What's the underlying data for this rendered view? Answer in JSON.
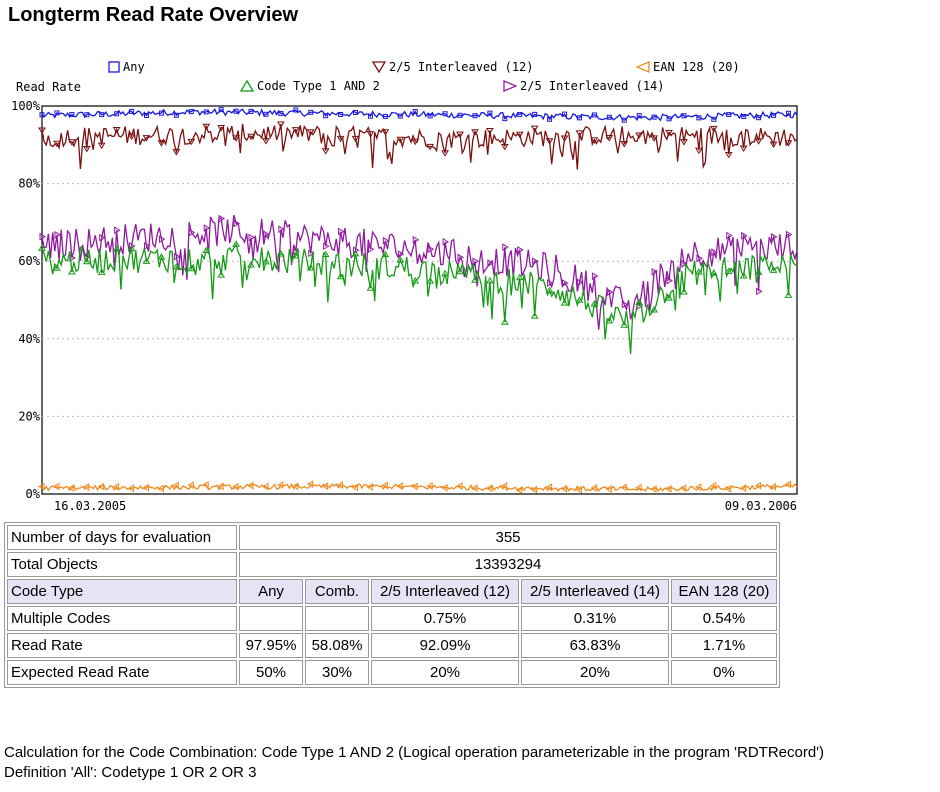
{
  "title": "Longterm Read Rate Overview",
  "chart_data": {
    "type": "line",
    "ylabel": "Read Rate",
    "ylim": [
      0,
      100
    ],
    "yticks": [
      "0%",
      "20%",
      "40%",
      "60%",
      "80%",
      "100%"
    ],
    "x_start_label": "16.03.2005",
    "x_end_label": "09.03.2006",
    "grid": true,
    "legend": [
      {
        "label": "Any",
        "marker": "square",
        "color": "#1a1adb"
      },
      {
        "label": "Code Type 1 AND 2",
        "marker": "triangle-up",
        "color": "#159a15"
      },
      {
        "label": "2/5 Interleaved (12)",
        "marker": "triangle-down",
        "color": "#7a1010"
      },
      {
        "label": "2/5 Interleaved (14)",
        "marker": "triangle-right",
        "color": "#8e1a9e"
      },
      {
        "label": "EAN 128 (20)",
        "marker": "triangle-left",
        "color": "#f08a1e"
      }
    ],
    "series": [
      {
        "name": "Any",
        "color": "#1a1adb",
        "profile": [
          [
            0,
            97.5
          ],
          [
            0.2,
            98.5
          ],
          [
            0.5,
            97.8
          ],
          [
            0.8,
            97
          ],
          [
            1,
            97.8
          ]
        ],
        "spread": 0.8,
        "dips": 0
      },
      {
        "name": "2/5 Interleaved (12)",
        "color": "#7a1010",
        "profile": [
          [
            0,
            92
          ],
          [
            0.3,
            93
          ],
          [
            0.55,
            91.5
          ],
          [
            0.75,
            92.5
          ],
          [
            1,
            92
          ]
        ],
        "spread": 2.5,
        "dips": 7
      },
      {
        "name": "2/5 Interleaved (14)",
        "color": "#8e1a9e",
        "profile": [
          [
            0,
            64
          ],
          [
            0.25,
            68
          ],
          [
            0.5,
            63
          ],
          [
            0.68,
            58
          ],
          [
            0.78,
            48
          ],
          [
            0.85,
            62
          ],
          [
            1,
            64
          ]
        ],
        "spread": 4,
        "dips": 10
      },
      {
        "name": "Code Type 1 AND 2",
        "color": "#159a15",
        "profile": [
          [
            0,
            60
          ],
          [
            0.25,
            61
          ],
          [
            0.5,
            58
          ],
          [
            0.68,
            53
          ],
          [
            0.78,
            44
          ],
          [
            0.85,
            57
          ],
          [
            1,
            59
          ]
        ],
        "spread": 3.5,
        "dips": 9
      },
      {
        "name": "EAN 128 (20)",
        "color": "#f08a1e",
        "profile": [
          [
            0,
            1.5
          ],
          [
            0.4,
            2
          ],
          [
            0.8,
            1.2
          ],
          [
            1,
            2
          ]
        ],
        "spread": 0.6,
        "dips": 0
      }
    ],
    "samples": 355
  },
  "table": {
    "rows": [
      {
        "label": "Number of days for evaluation",
        "span_value": "355"
      },
      {
        "label": "Total Objects",
        "span_value": "13393294"
      },
      {
        "label": "Code Type",
        "values": [
          "Any",
          "Comb.",
          "2/5 Interleaved (12)",
          "2/5 Interleaved (14)",
          "EAN 128 (20)"
        ]
      },
      {
        "label": "Multiple Codes",
        "values": [
          "",
          "",
          "0.75%",
          "0.31%",
          "0.54%"
        ]
      },
      {
        "label": "Read Rate",
        "values": [
          "97.95%",
          "58.08%",
          "92.09%",
          "63.83%",
          "1.71%"
        ]
      },
      {
        "label": "Expected Read Rate",
        "values": [
          "50%",
          "30%",
          "20%",
          "20%",
          "0%"
        ]
      }
    ]
  },
  "notes": [
    "Calculation for the Code Combination: Code Type 1 AND 2 (Logical operation parameterizable in the program 'RDTRecord')",
    "Definition 'All': Codetype 1 OR 2 OR 3"
  ]
}
